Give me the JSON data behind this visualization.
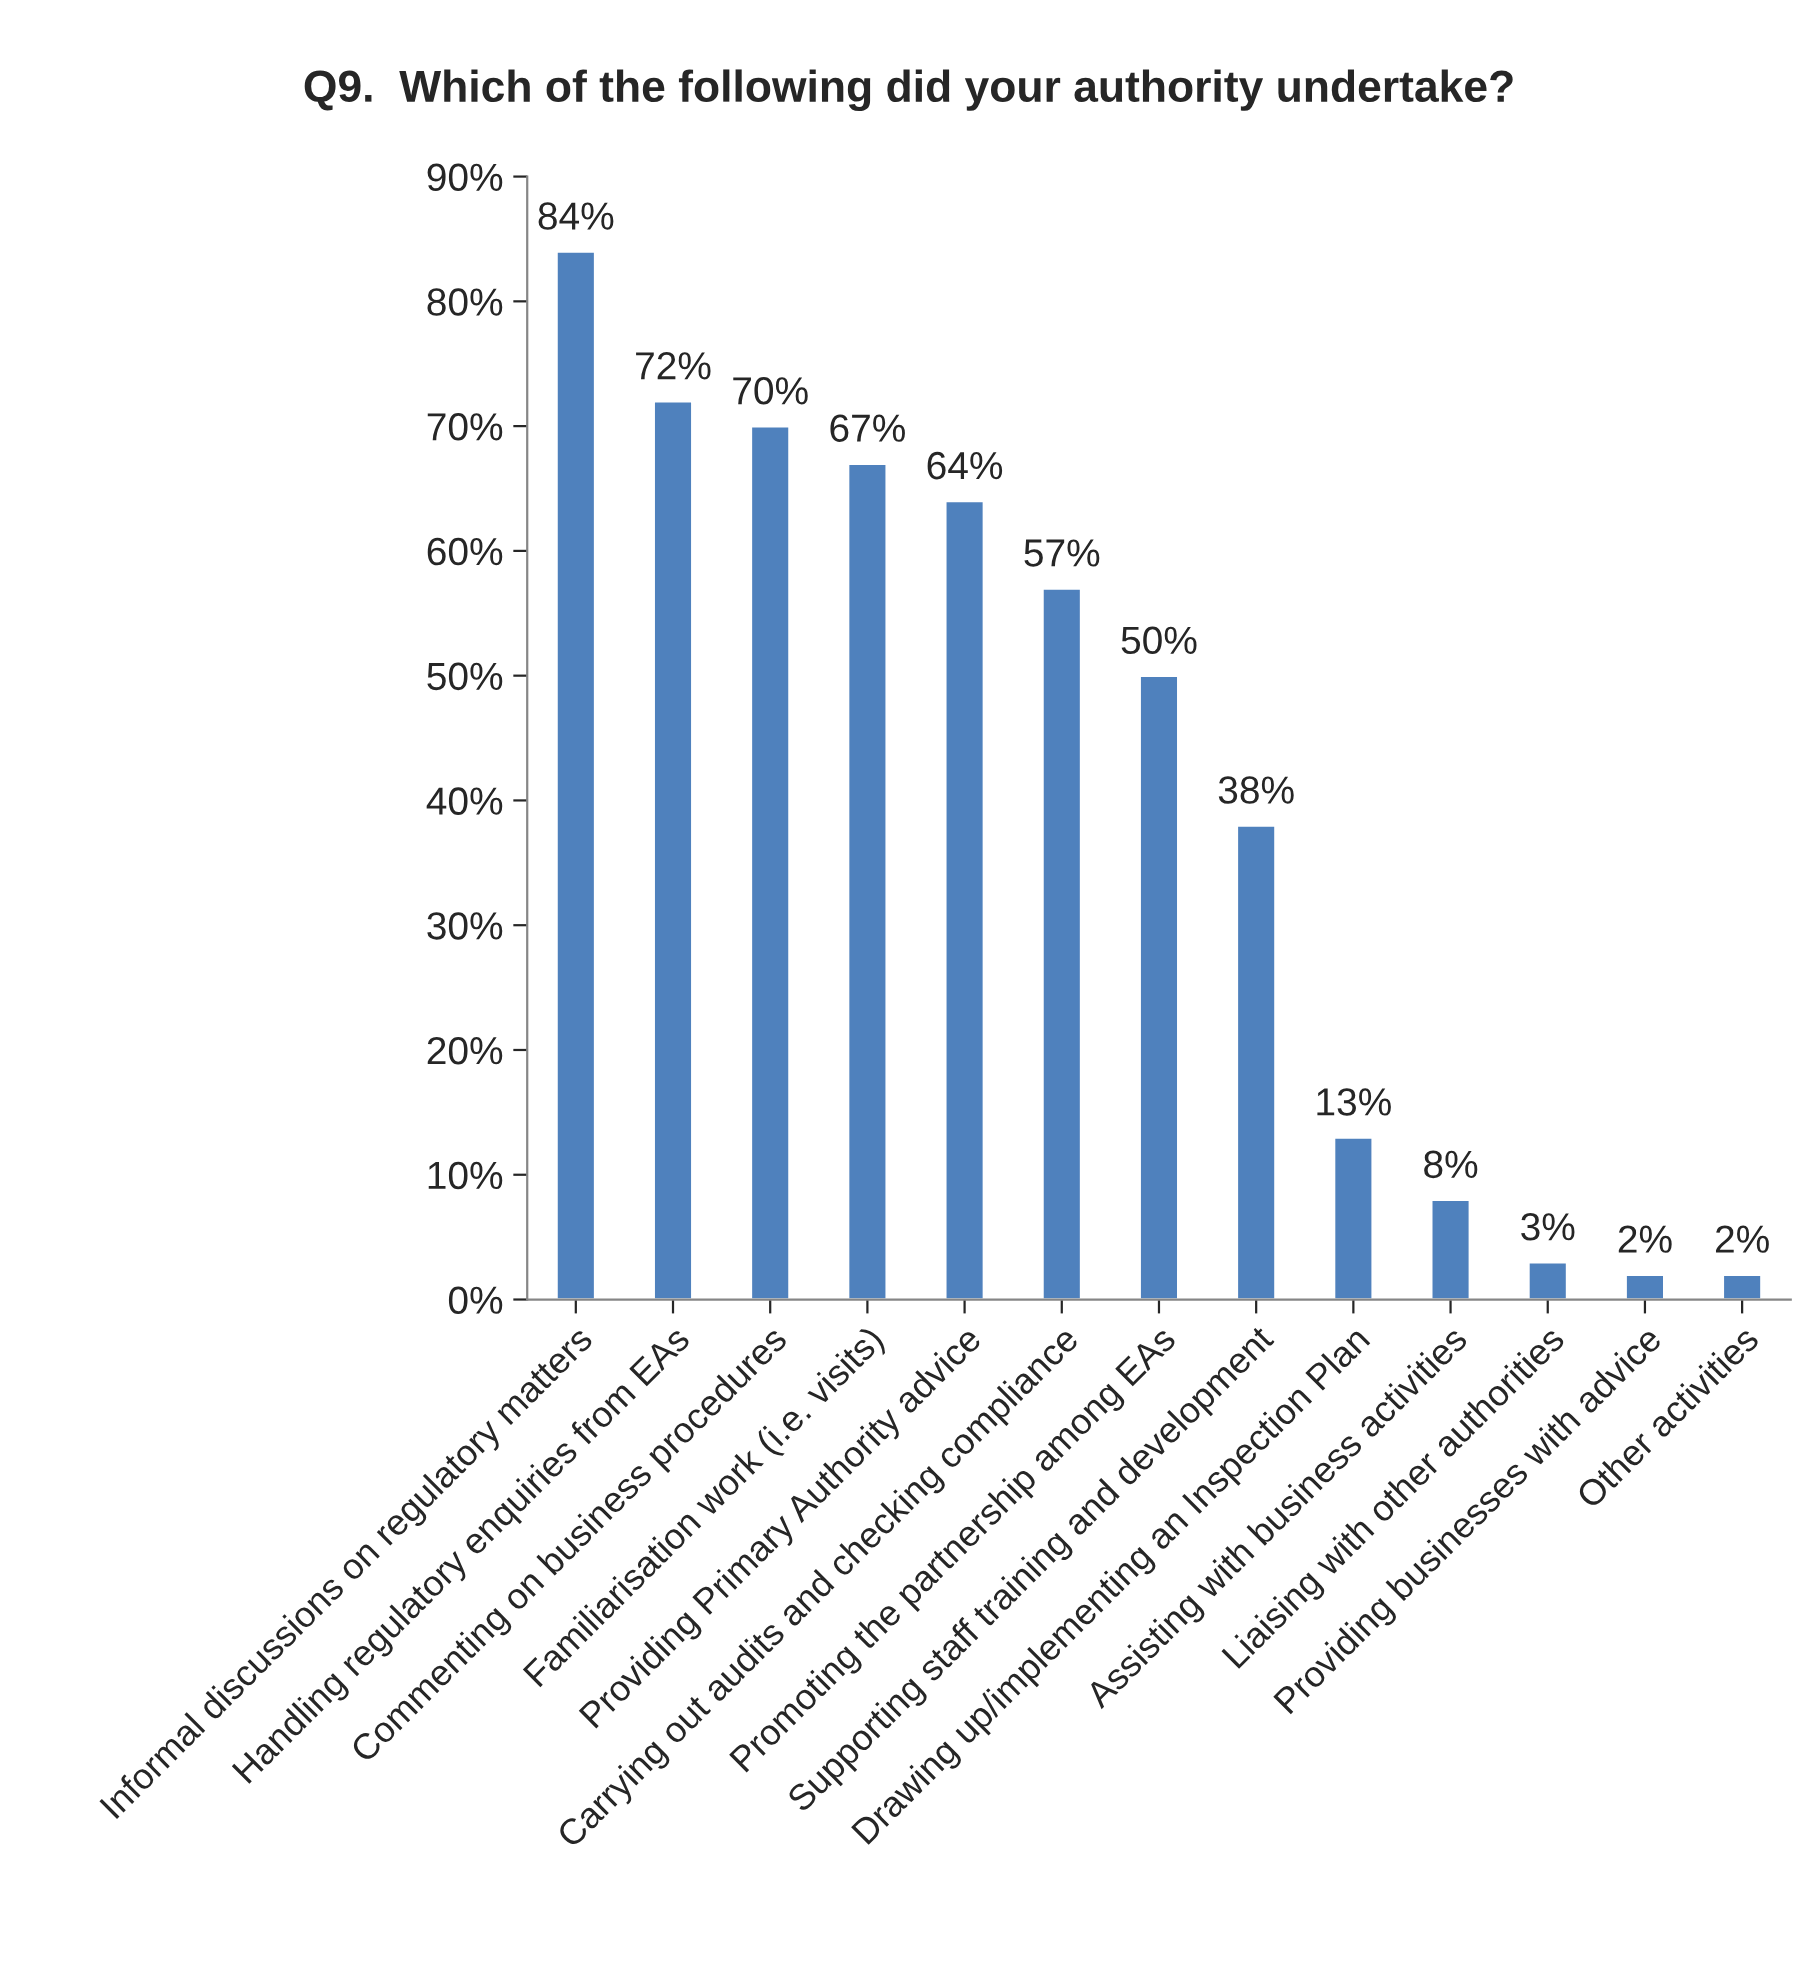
{
  "chart_data": {
    "type": "bar",
    "title": "Q9.  Which of the following did your authority undertake?",
    "categories": [
      "Informal discussions on regulatory matters",
      "Handling regulatory enquiries from EAs",
      "Commenting on business procedures",
      "Familiarisation work (i.e. visits)",
      "Providing Primary Authority advice",
      "Carrying out audits and checking compliance",
      "Promoting the partnership among EAs",
      "Supporting staff training and development",
      "Drawing up/implementing an Inspection Plan",
      "Assisting with business activities",
      "Liaising with other authorities",
      "Providing businesses with advice",
      "Other activities"
    ],
    "values": [
      84,
      72,
      70,
      67,
      64,
      57,
      50,
      38,
      13,
      8,
      3,
      2,
      2
    ],
    "value_labels": [
      "84%",
      "72%",
      "70%",
      "67%",
      "64%",
      "57%",
      "50%",
      "38%",
      "13%",
      "8%",
      "3%",
      "2%",
      "2%"
    ],
    "color": "#4f81bd",
    "ylim": [
      0,
      90
    ],
    "yticks": [
      {
        "value": 0,
        "label": "0%"
      },
      {
        "value": 10,
        "label": "10%"
      },
      {
        "value": 20,
        "label": "20%"
      },
      {
        "value": 30,
        "label": "30%"
      },
      {
        "value": 40,
        "label": "40%"
      },
      {
        "value": 50,
        "label": "50%"
      },
      {
        "value": 60,
        "label": "60%"
      },
      {
        "value": 70,
        "label": "70%"
      },
      {
        "value": 80,
        "label": "80%"
      },
      {
        "value": 90,
        "label": "90%"
      }
    ],
    "grid": false,
    "legend": false
  }
}
